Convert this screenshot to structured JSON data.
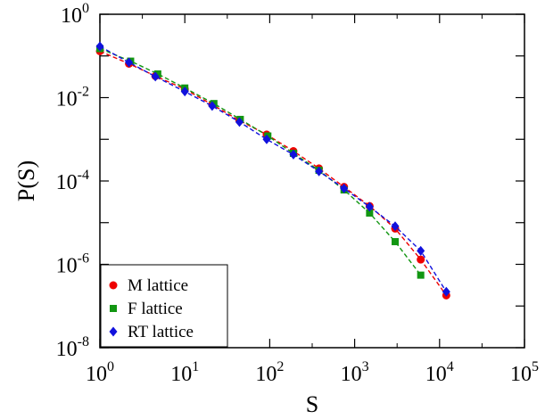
{
  "chart_data": {
    "type": "scatter",
    "xlabel": "S",
    "ylabel": "P(S)",
    "x_scale": "log",
    "y_scale": "log",
    "xlim": [
      1,
      100000
    ],
    "ylim": [
      1e-08,
      1
    ],
    "x_ticks": [
      {
        "base": "10",
        "exp": "0",
        "value": 1
      },
      {
        "base": "10",
        "exp": "1",
        "value": 10
      },
      {
        "base": "10",
        "exp": "2",
        "value": 100
      },
      {
        "base": "10",
        "exp": "3",
        "value": 1000
      },
      {
        "base": "10",
        "exp": "4",
        "value": 10000
      },
      {
        "base": "10",
        "exp": "5",
        "value": 100000
      }
    ],
    "y_ticks": [
      {
        "base": "10",
        "exp": "0",
        "value": 1
      },
      {
        "base": "10",
        "exp": "-2",
        "value": 0.01
      },
      {
        "base": "10",
        "exp": "-4",
        "value": 0.0001
      },
      {
        "base": "10",
        "exp": "-6",
        "value": 1e-06
      },
      {
        "base": "10",
        "exp": "-8",
        "value": 1e-08
      }
    ],
    "grid": false,
    "legend_position": "bottom-left",
    "series": [
      {
        "name": "M lattice",
        "color": "#ee0000",
        "marker": "circle",
        "points": [
          [
            1,
            0.13
          ],
          [
            2.2,
            0.065
          ],
          [
            4.5,
            0.033
          ],
          [
            10,
            0.016
          ],
          [
            21,
            0.0068
          ],
          [
            44,
            0.0028
          ],
          [
            92,
            0.0013
          ],
          [
            190,
            0.00052
          ],
          [
            380,
            0.0002
          ],
          [
            750,
            7.2e-05
          ],
          [
            1500,
            2.5e-05
          ],
          [
            3000,
            7.2e-06
          ],
          [
            6000,
            1.3e-06
          ],
          [
            12000,
            1.8e-07
          ]
        ]
      },
      {
        "name": "F lattice",
        "color": "#129612",
        "marker": "square",
        "points": [
          [
            1,
            0.15
          ],
          [
            2.3,
            0.075
          ],
          [
            4.8,
            0.037
          ],
          [
            10,
            0.017
          ],
          [
            22,
            0.0072
          ],
          [
            45,
            0.003
          ],
          [
            95,
            0.0012
          ],
          [
            190,
            0.00046
          ],
          [
            380,
            0.00018
          ],
          [
            750,
            6.1e-05
          ],
          [
            1500,
            1.7e-05
          ],
          [
            3000,
            3.5e-06
          ],
          [
            6000,
            5.5e-07
          ]
        ]
      },
      {
        "name": "RT lattice",
        "color": "#1111dd",
        "marker": "diamond",
        "points": [
          [
            1,
            0.17
          ],
          [
            2.2,
            0.07
          ],
          [
            4.5,
            0.032
          ],
          [
            10,
            0.014
          ],
          [
            21,
            0.0063
          ],
          [
            44,
            0.0026
          ],
          [
            92,
            0.001
          ],
          [
            190,
            0.00043
          ],
          [
            380,
            0.00017
          ],
          [
            750,
            6.6e-05
          ],
          [
            1500,
            2.4e-05
          ],
          [
            3000,
            8.2e-06
          ],
          [
            6000,
            2.1e-06
          ],
          [
            12000,
            2.2e-07
          ]
        ]
      }
    ]
  }
}
